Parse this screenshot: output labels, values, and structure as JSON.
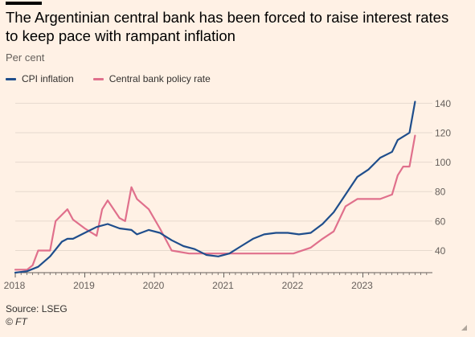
{
  "header": {
    "title": "The Argentinian central bank has been forced to raise interest rates to keep pace with rampant inflation",
    "subtitle": "Per cent"
  },
  "footer": {
    "source": "Source: LSEG",
    "credit": "© FT"
  },
  "colors": {
    "background": "#fff1e5",
    "cpi": "#1f4e8c",
    "policy": "#e0708c",
    "grid": "#e6d9ce",
    "axis": "#66605c"
  },
  "chart_data": {
    "type": "line",
    "title": "The Argentinian central bank has been forced to raise interest rates to keep pace with rampant inflation",
    "ylabel": "Per cent",
    "xlabel": "",
    "xlim": [
      2018.0,
      2024.0
    ],
    "ylim": [
      25,
      150
    ],
    "yticks": [
      40,
      60,
      80,
      100,
      120,
      140
    ],
    "xticks": [
      2018,
      2019,
      2020,
      2021,
      2022,
      2023
    ],
    "grid": true,
    "y_axis_side": "right",
    "legend_position": "top-left",
    "series": [
      {
        "name": "CPI inflation",
        "color": "#1f4e8c",
        "x": [
          2018.0,
          2018.17,
          2018.33,
          2018.5,
          2018.67,
          2018.75,
          2018.83,
          2019.0,
          2019.17,
          2019.33,
          2019.5,
          2019.67,
          2019.75,
          2019.92,
          2020.08,
          2020.25,
          2020.42,
          2020.58,
          2020.75,
          2020.92,
          2021.08,
          2021.25,
          2021.42,
          2021.58,
          2021.75,
          2021.92,
          2022.08,
          2022.25,
          2022.42,
          2022.58,
          2022.75,
          2022.92,
          2023.08,
          2023.25,
          2023.42,
          2023.5,
          2023.67,
          2023.75
        ],
        "y": [
          25,
          26,
          29,
          36,
          46,
          48,
          48,
          52,
          56,
          58,
          55,
          54,
          51,
          54,
          52,
          47,
          43,
          41,
          37,
          36,
          38,
          43,
          48,
          51,
          52,
          52,
          51,
          52,
          58,
          66,
          78,
          90,
          95,
          103,
          107,
          115,
          120,
          141
        ]
      },
      {
        "name": "Central bank policy rate",
        "color": "#e0708c",
        "x": [
          2018.0,
          2018.17,
          2018.25,
          2018.33,
          2018.5,
          2018.58,
          2018.75,
          2018.83,
          2019.0,
          2019.17,
          2019.25,
          2019.33,
          2019.5,
          2019.58,
          2019.67,
          2019.75,
          2019.92,
          2020.08,
          2020.25,
          2020.5,
          2020.75,
          2021.0,
          2021.5,
          2022.0,
          2022.25,
          2022.42,
          2022.58,
          2022.75,
          2022.92,
          2023.08,
          2023.25,
          2023.42,
          2023.5,
          2023.58,
          2023.67,
          2023.75
        ],
        "y": [
          27,
          27,
          30,
          40,
          40,
          60,
          68,
          61,
          55,
          50,
          68,
          74,
          62,
          60,
          83,
          75,
          68,
          55,
          40,
          38,
          38,
          38,
          38,
          38,
          42,
          48,
          53,
          70,
          75,
          75,
          75,
          78,
          91,
          97,
          97,
          118
        ]
      }
    ]
  }
}
